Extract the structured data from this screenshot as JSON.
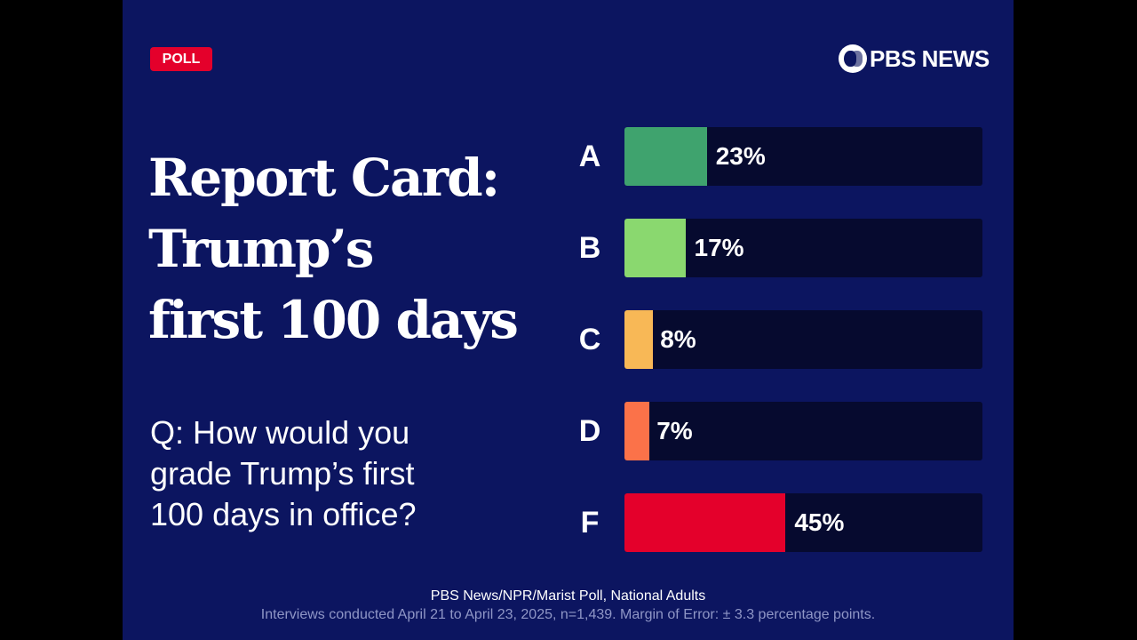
{
  "badge": "POLL",
  "logo": "PBS NEWS",
  "title_lines": [
    "Report Card:",
    "Trump’s",
    "first 100 days"
  ],
  "question_lines": [
    "Q: How would you",
    "grade Trump’s first",
    "100 days in office?"
  ],
  "chart_data": {
    "type": "bar",
    "orientation": "horizontal",
    "categories": [
      "A",
      "B",
      "C",
      "D",
      "F"
    ],
    "values": [
      23,
      17,
      8,
      7,
      45
    ],
    "value_labels": [
      "23%",
      "17%",
      "8%",
      "7%",
      "45%"
    ],
    "xlim": [
      0,
      100
    ],
    "colors": [
      "#3fa36e",
      "#8ad86f",
      "#f8b856",
      "#fb7249",
      "#e4002b"
    ],
    "track_color": "#060a2f",
    "grid": false
  },
  "source": "PBS News/NPR/Marist Poll, National Adults",
  "note": "Interviews conducted April 21 to April 23, 2025, n=1,439. Margin of Error: ± 3.3 percentage points.",
  "colors": {
    "background": "#0c1560",
    "badge": "#e4002b"
  }
}
